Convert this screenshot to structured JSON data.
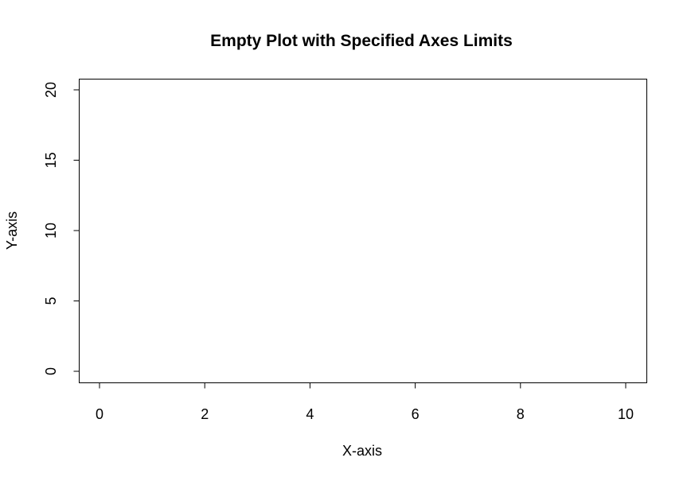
{
  "chart_data": {
    "type": "scatter",
    "title": "Empty Plot with Specified Axes Limits",
    "xlabel": "X-axis",
    "ylabel": "Y-axis",
    "xlim": [
      0,
      10
    ],
    "ylim": [
      0,
      20
    ],
    "x_ticks": [
      "0",
      "2",
      "4",
      "6",
      "8",
      "10"
    ],
    "y_ticks": [
      "0",
      "5",
      "10",
      "15",
      "20"
    ],
    "series": [],
    "grid": false,
    "legend": "none"
  }
}
